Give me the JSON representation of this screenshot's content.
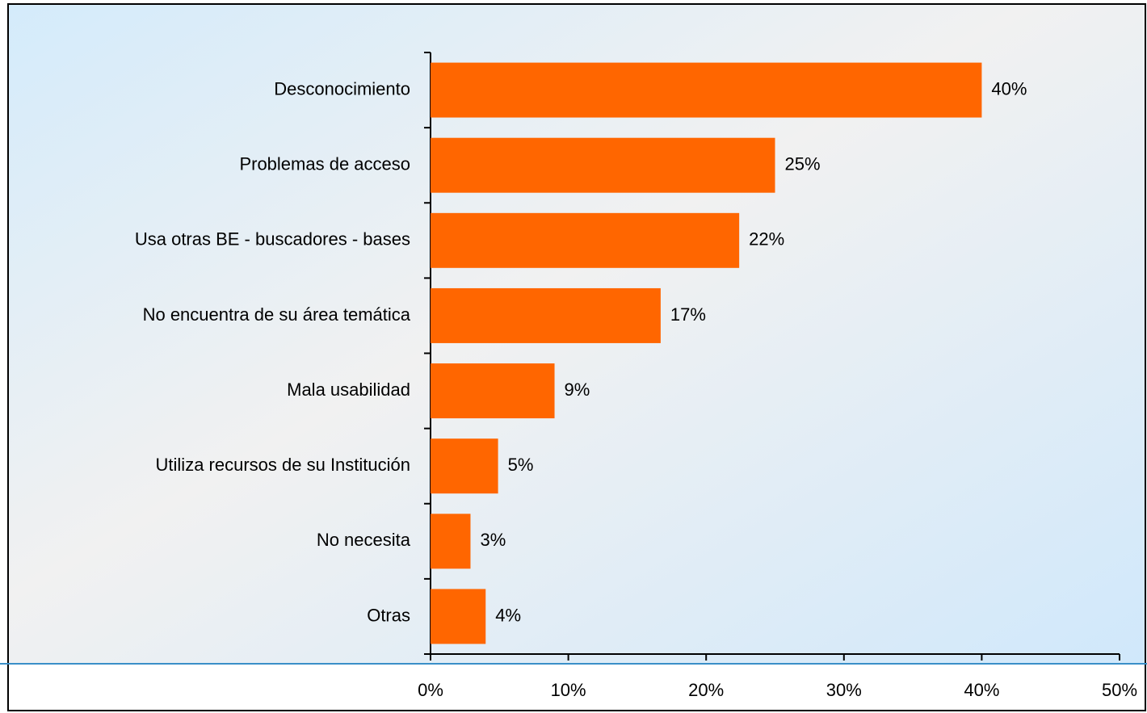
{
  "chart_data": {
    "type": "hbar",
    "categories": [
      "Desconocimiento",
      "Problemas de acceso",
      "Usa otras BE - buscadores - bases",
      "No encuentra de su área temática",
      "Mala usabilidad",
      "Utiliza recursos de su Institución",
      "No necesita",
      "Otras"
    ],
    "values": [
      40,
      25,
      22.4,
      16.7,
      9,
      4.9,
      2.9,
      4
    ],
    "value_labels": [
      "40%",
      "25%",
      "22%",
      "17%",
      "9%",
      "5%",
      "3%",
      "4%"
    ],
    "color": "#ff6600",
    "xlim": [
      0,
      50
    ],
    "xticks": [
      {
        "value": 0,
        "label": "0%"
      },
      {
        "value": 10,
        "label": "10%"
      },
      {
        "value": 20,
        "label": "20%"
      },
      {
        "value": 30,
        "label": "30%"
      },
      {
        "value": 40,
        "label": "40%"
      },
      {
        "value": 50,
        "label": "50%"
      }
    ],
    "grid": false
  }
}
